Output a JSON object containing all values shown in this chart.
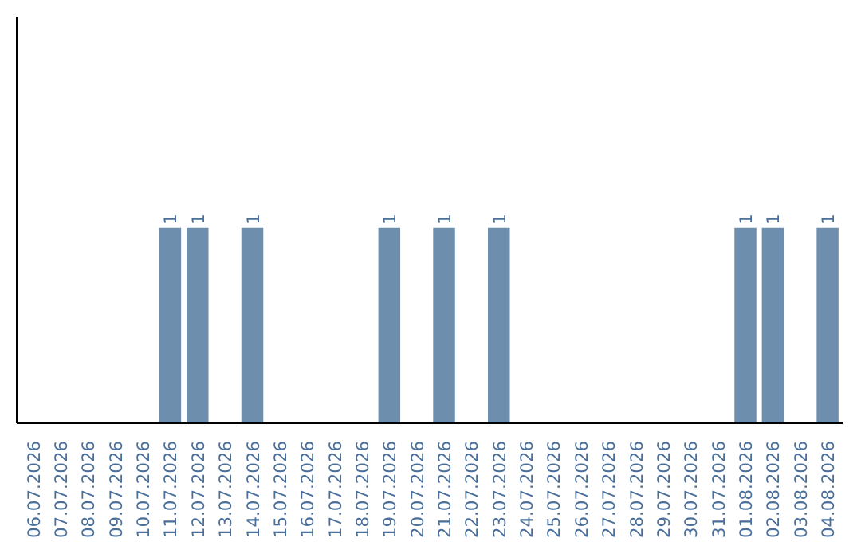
{
  "chart_data": {
    "type": "bar",
    "color": "#6d8fad",
    "categories": [
      "06.07.2026",
      "07.07.2026",
      "08.07.2026",
      "09.07.2026",
      "10.07.2026",
      "11.07.2026",
      "12.07.2026",
      "13.07.2026",
      "14.07.2026",
      "15.07.2026",
      "16.07.2026",
      "17.07.2026",
      "18.07.2026",
      "19.07.2026",
      "20.07.2026",
      "21.07.2026",
      "22.07.2026",
      "23.07.2026",
      "24.07.2026",
      "25.07.2026",
      "26.07.2026",
      "27.07.2026",
      "28.07.2026",
      "29.07.2026",
      "30.07.2026",
      "31.07.2026",
      "01.08.2026",
      "02.08.2026",
      "03.08.2026",
      "04.08.2026"
    ],
    "values": [
      0,
      0,
      0,
      0,
      0,
      1,
      1,
      0,
      1,
      0,
      0,
      0,
      0,
      1,
      0,
      1,
      0,
      1,
      0,
      0,
      0,
      0,
      0,
      0,
      0,
      0,
      1,
      1,
      0,
      1
    ],
    "value_labels": [
      null,
      null,
      null,
      null,
      null,
      "1",
      "1",
      null,
      "1",
      null,
      null,
      null,
      null,
      "1",
      null,
      "1",
      null,
      "1",
      null,
      null,
      null,
      null,
      null,
      null,
      null,
      null,
      "1",
      "1",
      null,
      "1"
    ],
    "grid": false
  }
}
